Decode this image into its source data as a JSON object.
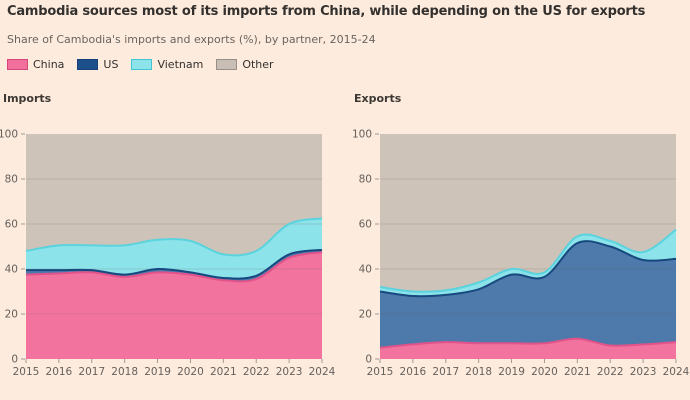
{
  "page": {
    "background": "#fdecde"
  },
  "header": {
    "title": "Cambodia sources most of its imports from China, while depending on the US for exports",
    "subtitle": "Share of Cambodia's imports and exports (%), by partner, 2015-24"
  },
  "legend": [
    {
      "label": "China",
      "fill": "#f0709b",
      "border": "#d6457c"
    },
    {
      "label": "US",
      "fill": "#1d4f8c",
      "border": "#16407a"
    },
    {
      "label": "Vietnam",
      "fill": "#8ce3ea",
      "border": "#43c4d3"
    },
    {
      "label": "Other",
      "fill": "#c8beb3",
      "border": "#97908a"
    }
  ],
  "chart_data": [
    {
      "type": "area",
      "stacked": true,
      "title": "Imports",
      "x": [
        2015,
        2016,
        2017,
        2018,
        2019,
        2020,
        2021,
        2022,
        2023,
        2024
      ],
      "series": [
        {
          "name": "China",
          "fill": "#f2739e",
          "line": "#e2538a",
          "values": [
            37.5,
            38,
            38.5,
            36.5,
            38.5,
            37.5,
            35,
            35.5,
            45,
            47.5
          ]
        },
        {
          "name": "US",
          "fill": "#4e79ab",
          "line": "#17497f",
          "values": [
            2,
            1.5,
            1,
            1,
            1.5,
            1,
            1,
            1.5,
            1.5,
            1
          ]
        },
        {
          "name": "Vietnam",
          "fill": "#8ce3ea",
          "line": "#5bd3de",
          "values": [
            8.5,
            11,
            11,
            13,
            13,
            14,
            10.5,
            11,
            13.5,
            14
          ]
        },
        {
          "name": "Other",
          "fill": "#cdc3b8",
          "line": "#cdc3b8",
          "values": [
            52,
            49.5,
            49.5,
            49.5,
            47,
            47.5,
            53.5,
            52,
            40,
            37.5
          ]
        }
      ],
      "ylim": [
        0,
        100
      ],
      "yticks": [
        0,
        20,
        40,
        60,
        80,
        100
      ],
      "grid": true,
      "legend_position": "top"
    },
    {
      "type": "area",
      "stacked": true,
      "title": "Exports",
      "x": [
        2015,
        2016,
        2017,
        2018,
        2019,
        2020,
        2021,
        2022,
        2023,
        2024
      ],
      "series": [
        {
          "name": "China",
          "fill": "#f2739e",
          "line": "#e2538a",
          "values": [
            5,
            6.5,
            7.5,
            7,
            7,
            7,
            9,
            6,
            6.5,
            7.5
          ]
        },
        {
          "name": "US",
          "fill": "#4e79ab",
          "line": "#17497f",
          "values": [
            25,
            21.5,
            21,
            24,
            30.5,
            29.5,
            42.5,
            44,
            37.5,
            37
          ]
        },
        {
          "name": "Vietnam",
          "fill": "#8ce3ea",
          "line": "#5bd3de",
          "values": [
            2,
            2,
            2,
            3,
            2.5,
            2,
            3,
            2.5,
            3.5,
            13
          ]
        },
        {
          "name": "Other",
          "fill": "#cdc3b8",
          "line": "#cdc3b8",
          "values": [
            68,
            70,
            69.5,
            66,
            60,
            61.5,
            45.5,
            47.5,
            52.5,
            42.5
          ]
        }
      ],
      "ylim": [
        0,
        100
      ],
      "yticks": [
        0,
        20,
        40,
        60,
        80,
        100
      ],
      "grid": true,
      "legend_position": "top"
    }
  ]
}
